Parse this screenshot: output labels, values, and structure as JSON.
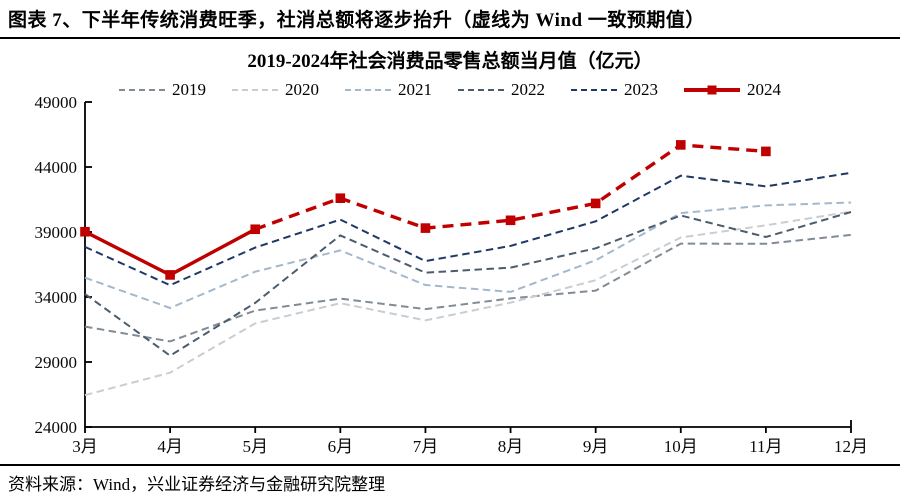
{
  "header": {
    "title": "图表 7、下半年传统消费旺季，社消总额将逐步抬升（虚线为 Wind 一致预期值）"
  },
  "source": {
    "text": "资料来源：Wind，兴业证券经济与金融研究院整理"
  },
  "colors": {
    "accent_red": "#C00000",
    "axis": "#000000"
  },
  "chart_data": {
    "type": "line",
    "title": "2019-2024年社会消费品零售总额当月值（亿元）",
    "categories": [
      "3月",
      "4月",
      "5月",
      "6月",
      "7月",
      "8月",
      "9月",
      "10月",
      "11月",
      "12月"
    ],
    "ylim": [
      24000,
      49000
    ],
    "yticks": [
      24000,
      29000,
      34000,
      39000,
      44000,
      49000
    ],
    "grid": false,
    "legend_position": "top",
    "series": [
      {
        "name": "2019",
        "color": "#808B96",
        "style": "dashed",
        "values": [
          31726,
          30586,
          32956,
          33878,
          33073,
          33896,
          34495,
          38104,
          38094,
          38777
        ]
      },
      {
        "name": "2020",
        "color": "#C9CDD2",
        "style": "dashed",
        "values": [
          26450,
          28178,
          31973,
          33526,
          32203,
          33571,
          35295,
          38576,
          39514,
          40566
        ]
      },
      {
        "name": "2021",
        "color": "#A3B8CD",
        "style": "dashed",
        "values": [
          35484,
          33153,
          35945,
          37586,
          34925,
          34395,
          36833,
          40454,
          41043,
          41269
        ]
      },
      {
        "name": "2022",
        "color": "#4A5C6D",
        "style": "dashed",
        "values": [
          34233,
          29483,
          33547,
          38742,
          35870,
          36258,
          37745,
          40271,
          38615,
          40542
        ]
      },
      {
        "name": "2023",
        "color": "#1F3864",
        "style": "dashed",
        "values": [
          37855,
          34910,
          37803,
          39951,
          36761,
          37933,
          39826,
          43333,
          42505,
          43550
        ]
      },
      {
        "name": "2024",
        "color": "#C00000",
        "style": "solid-then-dashed",
        "solid_until_index": 2,
        "marker": "square",
        "values": [
          39020,
          35699,
          39211,
          41600,
          39300,
          39900,
          41200,
          45700,
          45200,
          null
        ]
      }
    ]
  }
}
